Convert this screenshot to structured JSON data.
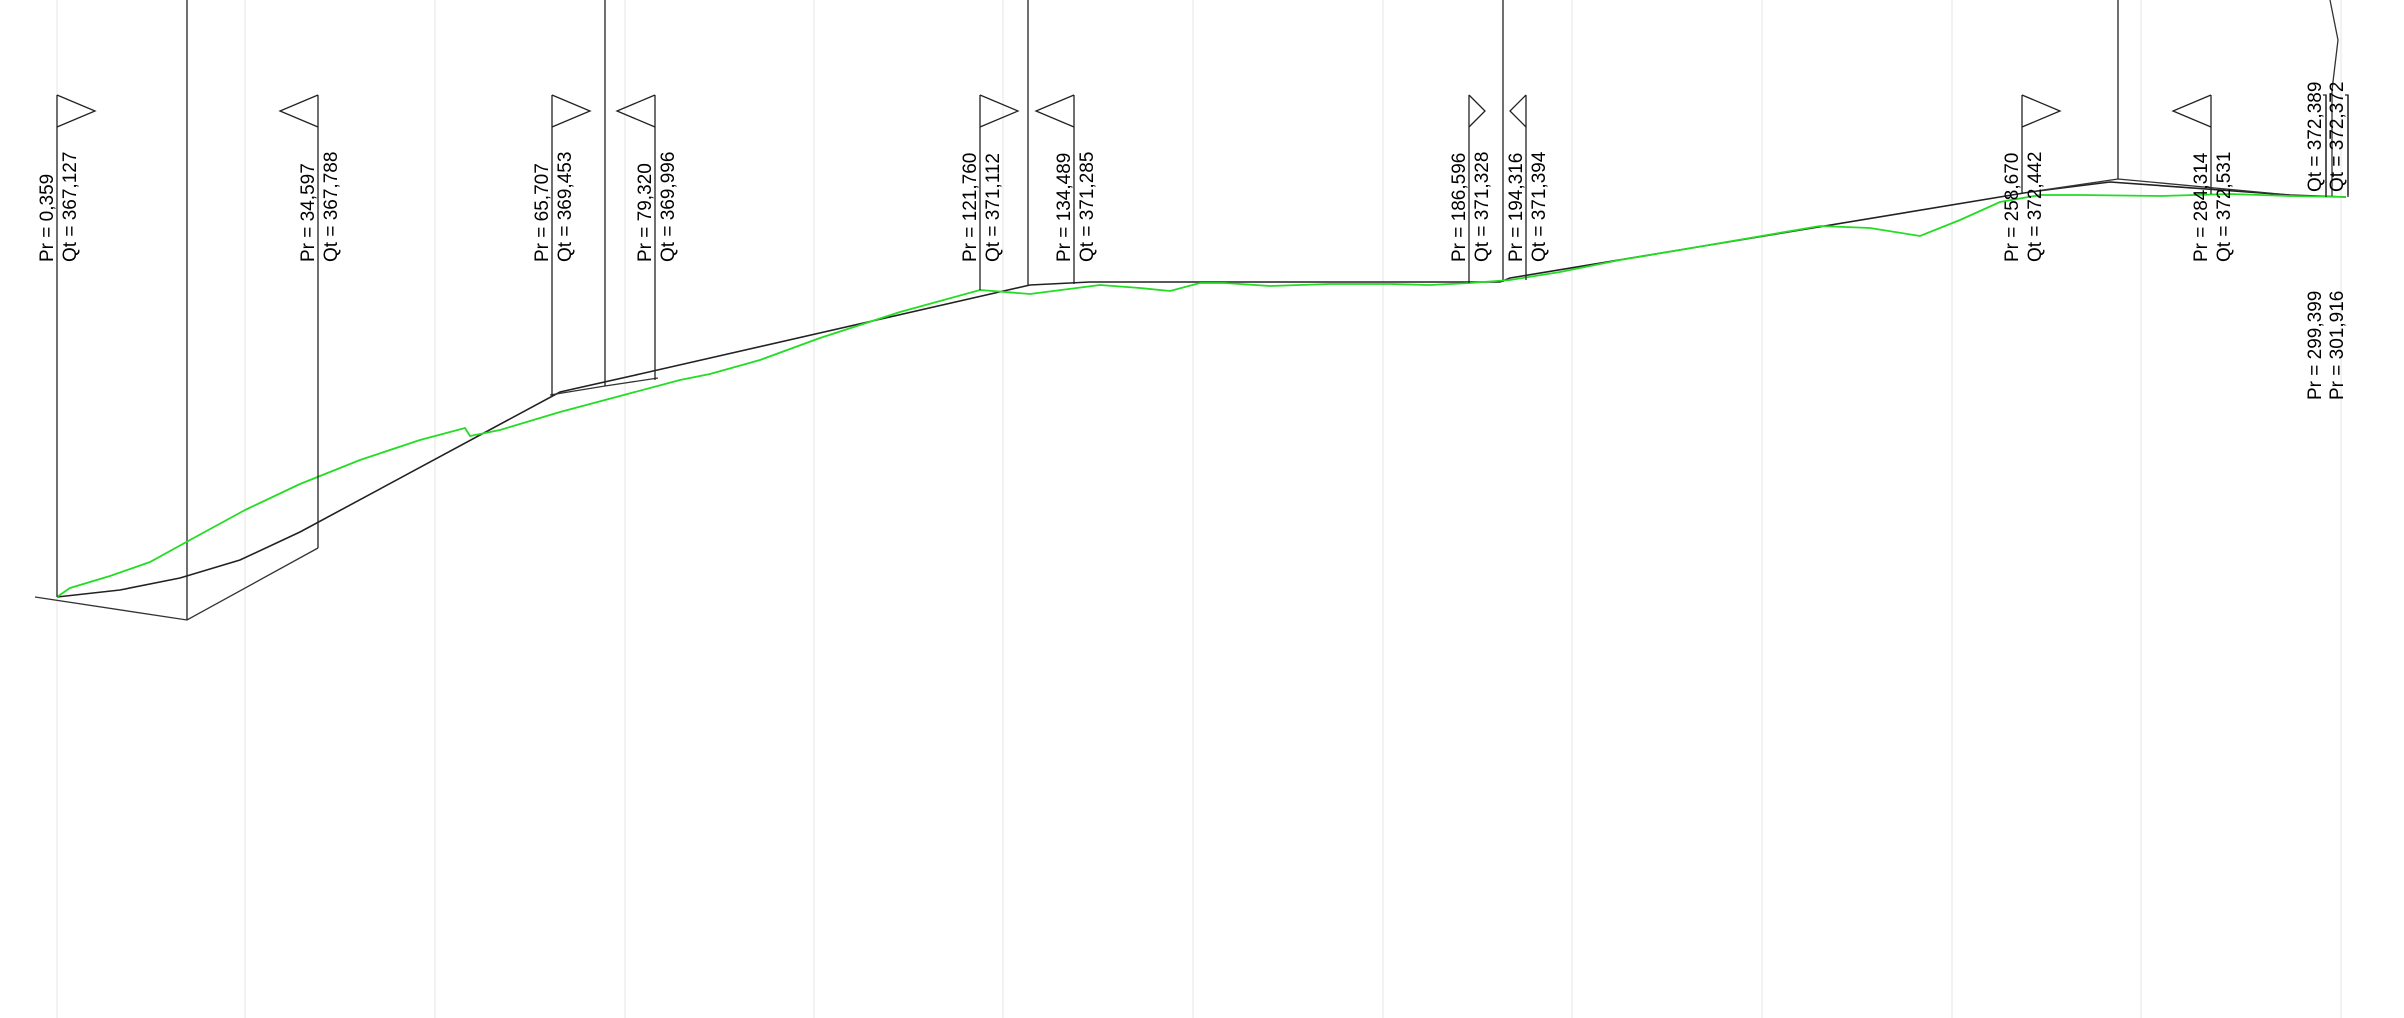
{
  "profile": {
    "terrain_color": "#22dd22",
    "design_color": "#222222",
    "points": [
      {
        "pr": "Pr = 0,359",
        "qt": "Qt = 367,127",
        "dir": "right"
      },
      {
        "pr": "Pr = 34,597",
        "qt": "Qt = 367,788",
        "dir": "left"
      },
      {
        "pr": "Pr = 65,707",
        "qt": "Qt = 369,453",
        "dir": "right"
      },
      {
        "pr": "Pr = 79,320",
        "qt": "Qt = 369,996",
        "dir": "left"
      },
      {
        "pr": "Pr = 121,760",
        "qt": "Qt = 371,112",
        "dir": "right"
      },
      {
        "pr": "Pr = 134,489",
        "qt": "Qt = 371,285",
        "dir": "left"
      },
      {
        "pr": "Pr = 186,596",
        "qt": "Qt = 371,328",
        "dir": "right"
      },
      {
        "pr": "Pr = 194,316",
        "qt": "Qt = 371,394",
        "dir": "left"
      },
      {
        "pr": "Pr = 258,670",
        "qt": "Qt = 372,442",
        "dir": "right"
      },
      {
        "pr": "Pr = 284,314",
        "qt": "Qt = 372,531",
        "dir": "left"
      },
      {
        "pr": "Pr = 299,399",
        "qt": "Qt = 372,389",
        "dir": "end"
      },
      {
        "pr": "Pr = 301,916",
        "qt": "Qt = 372,372",
        "dir": "end"
      }
    ]
  }
}
